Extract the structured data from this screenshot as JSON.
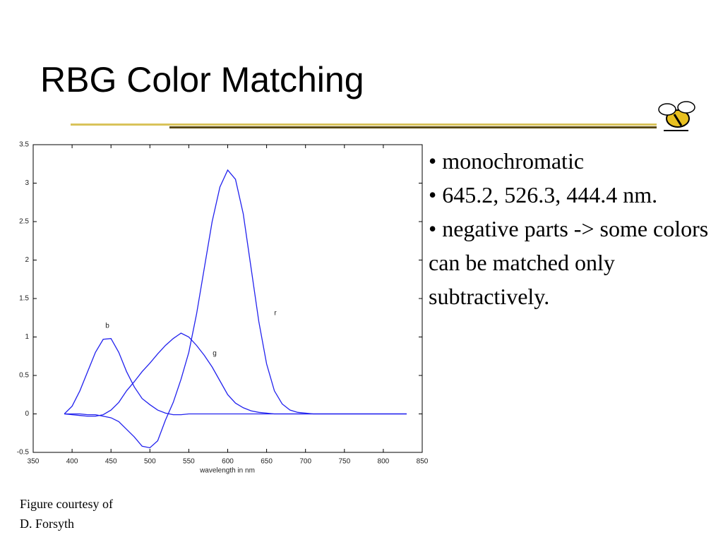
{
  "title": "RBG Color Matching",
  "bullets": [
    "• monochromatic",
    "• 645.2, 526.3, 444.4 nm.",
    "• negative parts -> some colors can be matched only subtractively."
  ],
  "caption": [
    "Figure courtesy of",
    "D. Forsyth"
  ],
  "chart_data": {
    "type": "line",
    "xlabel": "wavelength in nm",
    "x": [
      390,
      400,
      410,
      420,
      430,
      440,
      450,
      460,
      470,
      480,
      490,
      500,
      510,
      520,
      530,
      540,
      550,
      560,
      570,
      580,
      590,
      600,
      610,
      620,
      630,
      640,
      650,
      660,
      670,
      680,
      690,
      700,
      710,
      720,
      730,
      740,
      750,
      760,
      770,
      780,
      790,
      800,
      810,
      820,
      830
    ],
    "series": [
      {
        "name": "b",
        "color": "#2222ee",
        "values": [
          0,
          0.1,
          0.3,
          0.55,
          0.8,
          0.97,
          0.98,
          0.8,
          0.55,
          0.35,
          0.2,
          0.12,
          0.05,
          0.01,
          -0.01,
          -0.01,
          0,
          0,
          0,
          0,
          0,
          0,
          0,
          0,
          0,
          0,
          0,
          0,
          0,
          0,
          0,
          0,
          0,
          0,
          0,
          0,
          0,
          0,
          0,
          0,
          0,
          0,
          0,
          0,
          0
        ]
      },
      {
        "name": "g",
        "color": "#2222ee",
        "values": [
          0,
          -0.01,
          -0.02,
          -0.03,
          -0.03,
          -0.01,
          0.05,
          0.15,
          0.3,
          0.42,
          0.55,
          0.66,
          0.78,
          0.89,
          0.98,
          1.05,
          1.0,
          0.89,
          0.76,
          0.61,
          0.43,
          0.25,
          0.14,
          0.08,
          0.04,
          0.02,
          0.01,
          0,
          0,
          0,
          0,
          0,
          0,
          0,
          0,
          0,
          0,
          0,
          0,
          0,
          0,
          0,
          0,
          0,
          0
        ]
      },
      {
        "name": "r",
        "color": "#2222ee",
        "values": [
          0,
          0,
          0,
          -0.01,
          -0.01,
          -0.03,
          -0.05,
          -0.1,
          -0.2,
          -0.3,
          -0.42,
          -0.44,
          -0.35,
          -0.08,
          0.15,
          0.45,
          0.8,
          1.3,
          1.9,
          2.5,
          2.95,
          3.17,
          3.05,
          2.6,
          1.9,
          1.2,
          0.65,
          0.3,
          0.13,
          0.05,
          0.02,
          0.01,
          0,
          0,
          0,
          0,
          0,
          0,
          0,
          0,
          0,
          0,
          0,
          0,
          0
        ]
      }
    ],
    "xlim": [
      350,
      850
    ],
    "ylim": [
      -0.5,
      3.5
    ],
    "xticks": [
      350,
      400,
      450,
      500,
      550,
      600,
      650,
      700,
      750,
      800,
      850
    ],
    "yticks": [
      -0.5,
      0,
      0.5,
      1,
      1.5,
      2,
      2.5,
      3,
      3.5
    ],
    "grid": false
  }
}
